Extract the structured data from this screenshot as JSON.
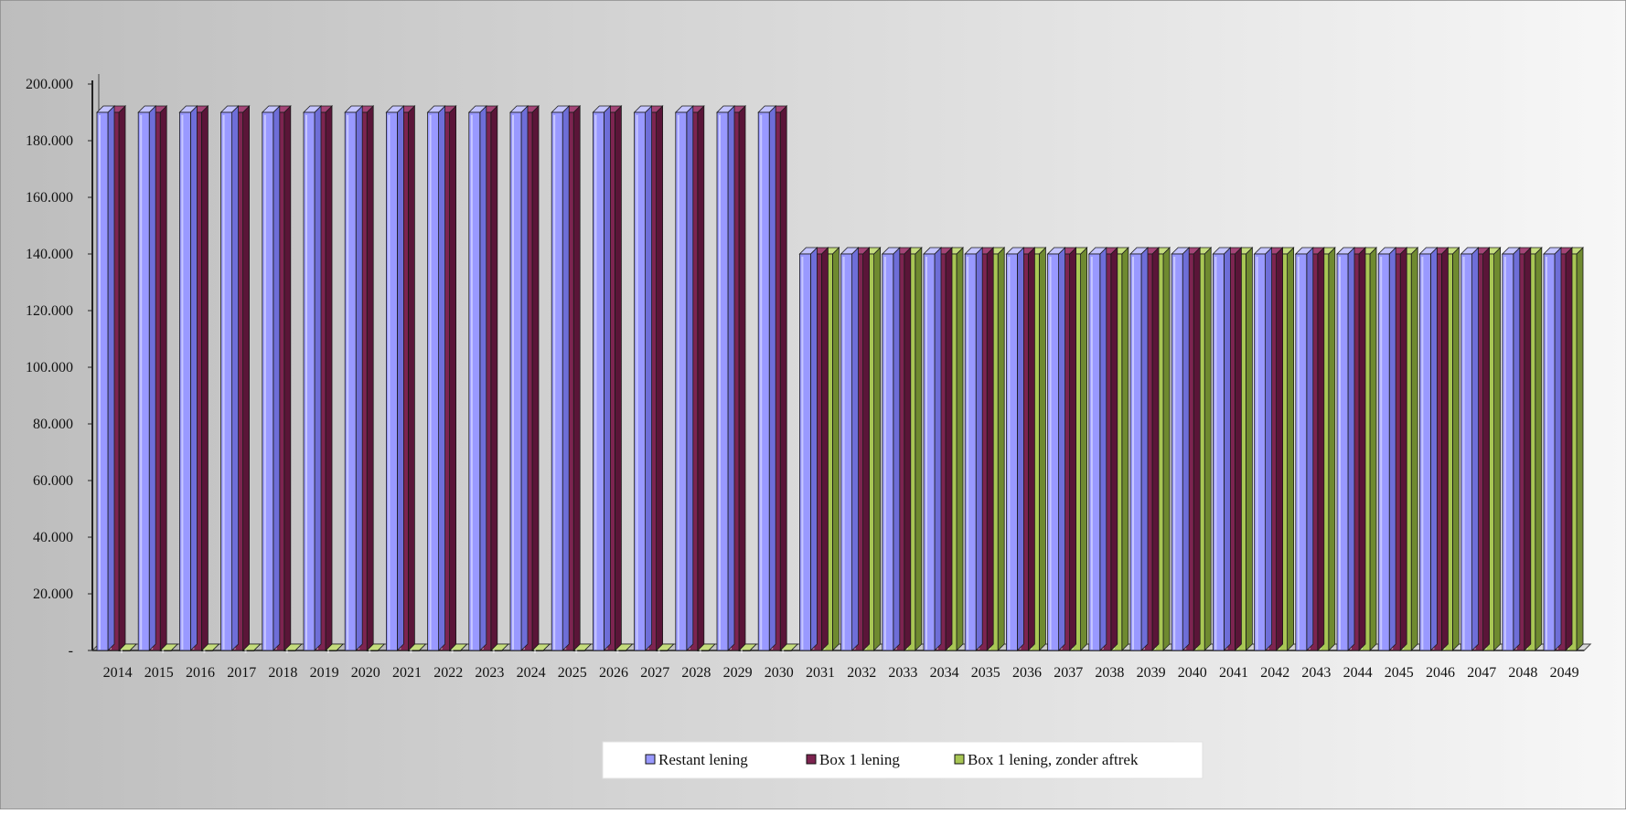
{
  "chart_data": {
    "type": "bar",
    "title": "",
    "xlabel": "",
    "ylabel": "",
    "ylim": [
      0,
      200000
    ],
    "ytick_values": [
      0,
      20000,
      40000,
      60000,
      80000,
      100000,
      120000,
      140000,
      160000,
      180000,
      200000
    ],
    "ytick_labels": [
      "-",
      "20.000",
      "40.000",
      "60.000",
      "80.000",
      "100.000",
      "120.000",
      "140.000",
      "160.000",
      "180.000",
      "200.000"
    ],
    "categories": [
      "2014",
      "2015",
      "2016",
      "2017",
      "2018",
      "2019",
      "2020",
      "2021",
      "2022",
      "2023",
      "2024",
      "2025",
      "2026",
      "2027",
      "2028",
      "2029",
      "2030",
      "2031",
      "2032",
      "2033",
      "2034",
      "2035",
      "2036",
      "2037",
      "2038",
      "2039",
      "2040",
      "2041",
      "2042",
      "2043",
      "2044",
      "2045",
      "2046",
      "2047",
      "2048",
      "2049"
    ],
    "series": [
      {
        "name": "Restant lening",
        "values": [
          190000,
          190000,
          190000,
          190000,
          190000,
          190000,
          190000,
          190000,
          190000,
          190000,
          190000,
          190000,
          190000,
          190000,
          190000,
          190000,
          190000,
          140000,
          140000,
          140000,
          140000,
          140000,
          140000,
          140000,
          140000,
          140000,
          140000,
          140000,
          140000,
          140000,
          140000,
          140000,
          140000,
          140000,
          140000,
          140000
        ]
      },
      {
        "name": "Box 1 lening",
        "values": [
          190000,
          190000,
          190000,
          190000,
          190000,
          190000,
          190000,
          190000,
          190000,
          190000,
          190000,
          190000,
          190000,
          190000,
          190000,
          190000,
          190000,
          140000,
          140000,
          140000,
          140000,
          140000,
          140000,
          140000,
          140000,
          140000,
          140000,
          140000,
          140000,
          140000,
          140000,
          140000,
          140000,
          140000,
          140000,
          140000
        ]
      },
      {
        "name": "Box 1 lening, zonder aftrek",
        "values": [
          0,
          0,
          0,
          0,
          0,
          0,
          0,
          0,
          0,
          0,
          0,
          0,
          0,
          0,
          0,
          0,
          0,
          140000,
          140000,
          140000,
          140000,
          140000,
          140000,
          140000,
          140000,
          140000,
          140000,
          140000,
          140000,
          140000,
          140000,
          140000,
          140000,
          140000,
          140000,
          140000
        ]
      }
    ],
    "grid": false,
    "legend_position": "bottom",
    "style": "3d-clustered-column",
    "colors": {
      "restant_front": "#9999ff",
      "restant_side": "#6e6ed8",
      "restant_top": "#c4c4ff",
      "box1_front": "#7d2450",
      "box1_side": "#5a1538",
      "box1_top": "#a44476",
      "zonder_front": "#a8c654",
      "zonder_side": "#6f8a30",
      "zonder_top": "#c4dc7c",
      "bg_left": "#bdbdbd",
      "bg_right": "#f7f7f7"
    }
  }
}
